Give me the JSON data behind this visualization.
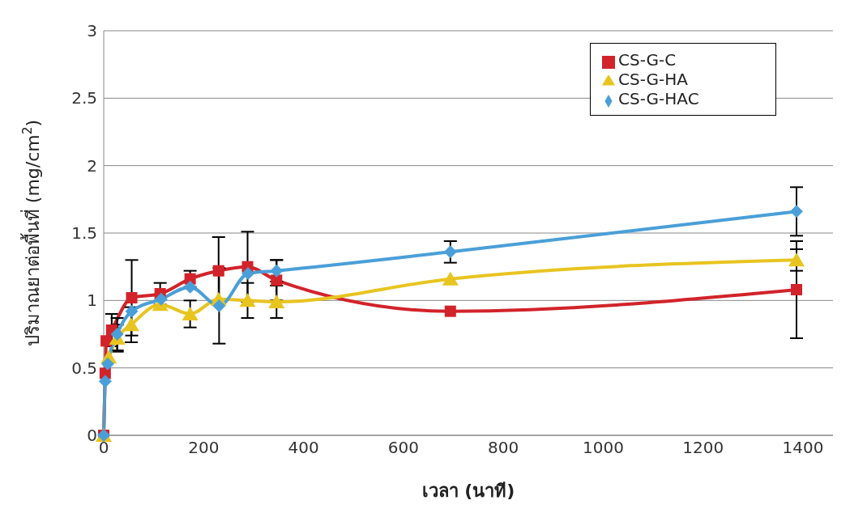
{
  "chart_data": {
    "type": "line",
    "xlabel": "เวลา (นาที)",
    "ylabel": "ปริมาณยาต่อพื้นที่ (mg/cm$^{2}$)",
    "xlim": [
      0,
      1460
    ],
    "xticks": [
      0,
      200,
      400,
      600,
      800,
      1000,
      1200,
      1400
    ],
    "ylim": [
      0,
      3
    ],
    "yticks": [
      0,
      0.5,
      1,
      1.5,
      2,
      2.5,
      3
    ],
    "grid": "y",
    "legend": "top right",
    "line_style": "solid",
    "series": [
      {
        "name": "CS-G-C",
        "color": "#d2232a",
        "marker": "square",
        "x": [
          0,
          3,
          5,
          16,
          56,
          113,
          173,
          230,
          288,
          346,
          694,
          1387
        ],
        "values": [
          0,
          0.46,
          0.7,
          0.78,
          1.02,
          1.05,
          1.16,
          1.22,
          1.25,
          1.15,
          0.92,
          1.08
        ],
        "errors": [
          null,
          null,
          null,
          0.12,
          0.28,
          0.08,
          0.06,
          0.25,
          0.26,
          0.15,
          null,
          0.36
        ]
      },
      {
        "name": "CS-G-HA",
        "color": "#e8c420",
        "marker": "triangle",
        "x": [
          0,
          3,
          10,
          27,
          55,
          113,
          173,
          230,
          288,
          346,
          694,
          1387
        ],
        "values": [
          0,
          null,
          0.58,
          0.72,
          0.82,
          0.97,
          0.9,
          1.01,
          1.0,
          0.99,
          1.16,
          1.3
        ],
        "errors": [
          null,
          null,
          null,
          0.1,
          0.13,
          null,
          0.1,
          null,
          0.13,
          0.12,
          null,
          0.08
        ]
      },
      {
        "name": "CS-G-HAC",
        "color": "#4a9fd8",
        "marker": "diamond",
        "x": [
          0,
          3,
          8,
          27,
          56,
          115,
          173,
          231,
          289,
          346,
          694,
          1387
        ],
        "values": [
          0,
          0.4,
          0.53,
          0.75,
          0.92,
          1.01,
          1.1,
          0.96,
          1.2,
          1.22,
          1.36,
          1.66
        ],
        "errors": [
          null,
          null,
          null,
          0.12,
          null,
          null,
          null,
          0.28,
          null,
          0.08,
          0.08,
          0.18
        ]
      }
    ]
  }
}
